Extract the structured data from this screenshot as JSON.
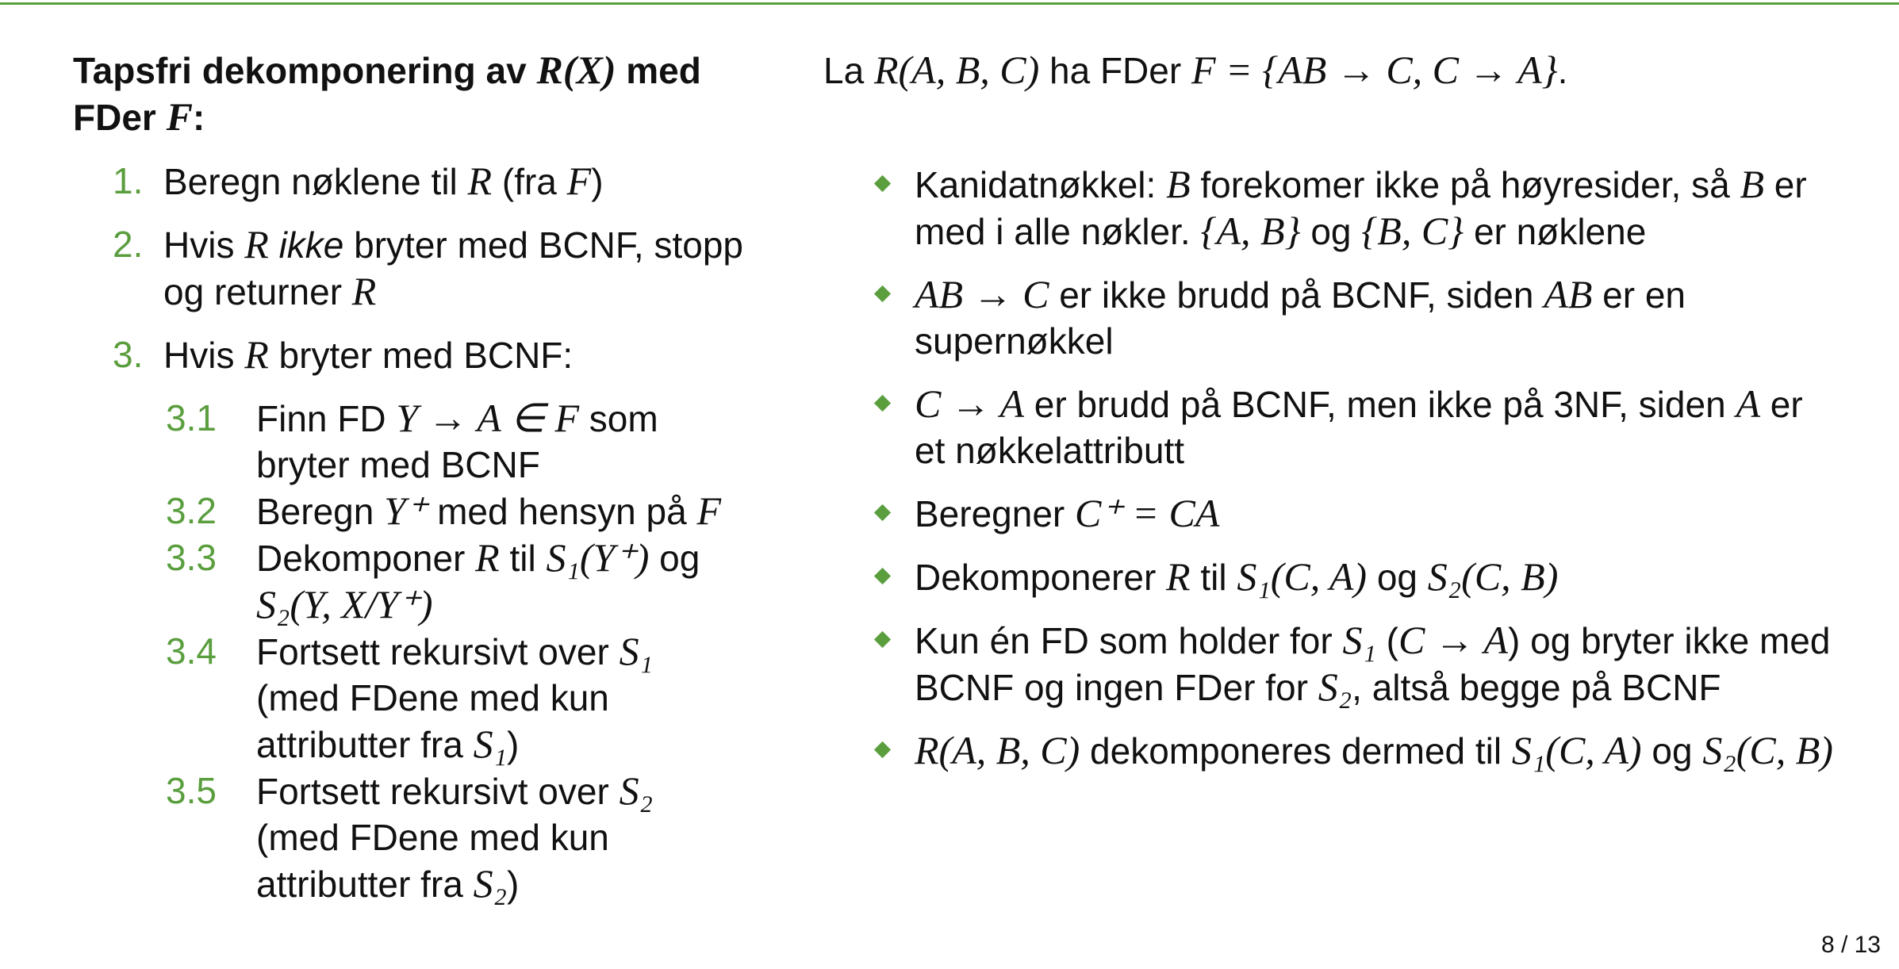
{
  "title": [
    "Tapsfri dekomponering av ",
    {
      "math": "R(X)"
    },
    " med FDer ",
    {
      "math": "F"
    },
    ":"
  ],
  "steps": [
    {
      "number": "1.",
      "text": [
        "Beregn nøklene til ",
        {
          "math": "R"
        },
        " (fra ",
        {
          "math": "F"
        },
        ")"
      ]
    },
    {
      "number": "2.",
      "text": [
        "Hvis ",
        {
          "math": "R"
        },
        " ",
        {
          "em": "ikke"
        },
        " bryter med BCNF, stopp og returner ",
        {
          "math": "R"
        }
      ]
    },
    {
      "number": "3.",
      "text": [
        "Hvis ",
        {
          "math": "R"
        },
        " bryter med BCNF:"
      ],
      "substeps": [
        {
          "number": "3.1",
          "text": [
            "Finn FD ",
            {
              "math": "Y → A ∈ F"
            },
            " som bryter med BCNF"
          ]
        },
        {
          "number": "3.2",
          "text": [
            "Beregn ",
            {
              "math": "Y⁺"
            },
            " med hensyn på ",
            {
              "math": "F"
            }
          ]
        },
        {
          "number": "3.3",
          "text": [
            "Dekomponer ",
            {
              "math": "R"
            },
            " til ",
            {
              "math": "S₁(Y⁺)"
            },
            " og ",
            {
              "math": "S₂(Y, X/Y⁺)"
            }
          ]
        },
        {
          "number": "3.4",
          "text": [
            "Fortsett rekursivt over ",
            {
              "math": "S₁"
            },
            " (med FDene med kun attributter fra ",
            {
              "math": "S₁"
            },
            ")"
          ]
        },
        {
          "number": "3.5",
          "text": [
            "Fortsett rekursivt over ",
            {
              "math": "S₂"
            },
            " (med FDene med kun attributter fra ",
            {
              "math": "S₂"
            },
            ")"
          ]
        }
      ]
    }
  ],
  "intro": [
    "La ",
    {
      "math": "R(A, B, C)"
    },
    " ha FDer ",
    {
      "math": "F = {AB → C, C → A}"
    },
    "."
  ],
  "bullets": [
    [
      "Kanidatnøkkel: ",
      {
        "math": "B"
      },
      " forekomer ikke på høyresider, så ",
      {
        "math": "B"
      },
      " er med i alle nøkler. ",
      {
        "math": "{A, B}"
      },
      " og ",
      {
        "math": "{B, C}"
      },
      " er nøklene"
    ],
    [
      {
        "math": "AB → C"
      },
      " er ikke brudd på BCNF, siden ",
      {
        "math": "AB"
      },
      " er en supernøkkel"
    ],
    [
      {
        "math": "C → A"
      },
      " er brudd på BCNF, men ikke på 3NF, siden ",
      {
        "math": "A"
      },
      " er et nøkkelattributt"
    ],
    [
      "Beregner ",
      {
        "math": "C⁺ = CA"
      }
    ],
    [
      "Dekomponerer ",
      {
        "math": "R"
      },
      " til ",
      {
        "math": "S₁(C, A)"
      },
      " og ",
      {
        "math": "S₂(C, B)"
      }
    ],
    [
      "Kun én FD som holder for ",
      {
        "math": "S₁"
      },
      " (",
      {
        "math": "C → A"
      },
      ") og bryter ikke med BCNF og ingen FDer for ",
      {
        "math": "S₂"
      },
      ", altså begge på BCNF"
    ],
    [
      {
        "math": "R(A, B, C)"
      },
      " dekomponeres dermed til ",
      {
        "math": "S₁(C, A)"
      },
      " og ",
      {
        "math": "S₂(C, B)"
      }
    ]
  ],
  "page_number": "8 / 13"
}
